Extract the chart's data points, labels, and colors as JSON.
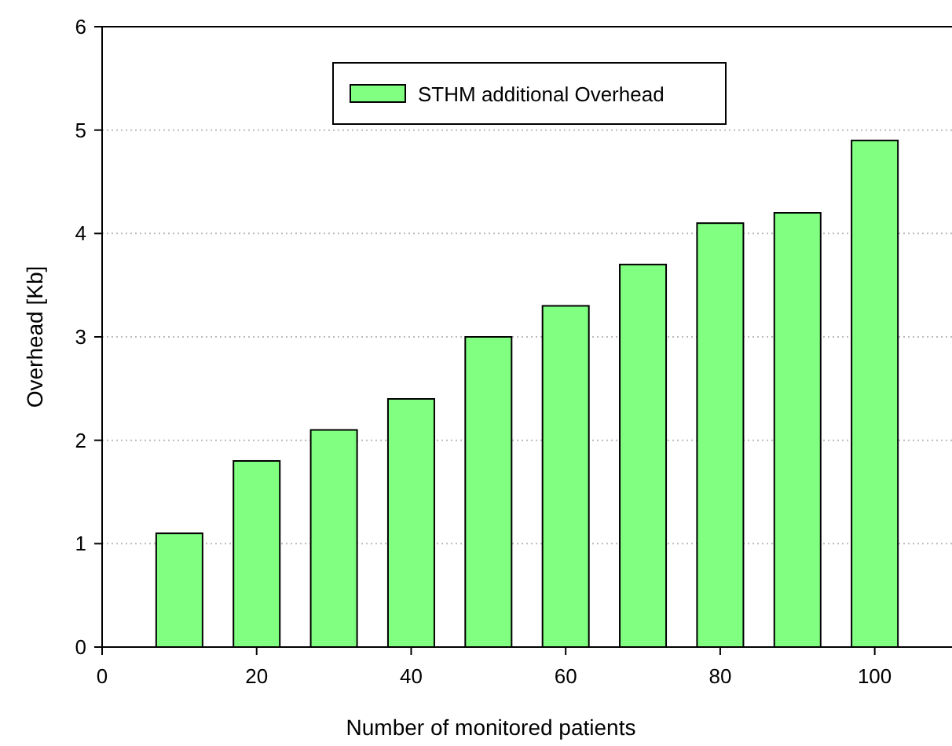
{
  "chart_data": {
    "type": "bar",
    "xlabel": "Number of monitored patients",
    "ylabel": "Overhead [Kb]",
    "x": [
      10,
      20,
      30,
      40,
      50,
      60,
      70,
      80,
      90,
      100
    ],
    "series": [
      {
        "name": "STHM additional Overhead",
        "color": "#80ff80",
        "values": [
          1.1,
          1.8,
          2.1,
          2.4,
          3.0,
          3.3,
          3.7,
          4.1,
          4.2,
          4.9
        ]
      }
    ],
    "xlim": [
      0,
      110
    ],
    "xticks": [
      0,
      20,
      40,
      60,
      80,
      100
    ],
    "ylim": [
      0,
      6
    ],
    "yticks": [
      0,
      1,
      2,
      3,
      4,
      5,
      6
    ],
    "grid": "y",
    "legend": "top"
  }
}
